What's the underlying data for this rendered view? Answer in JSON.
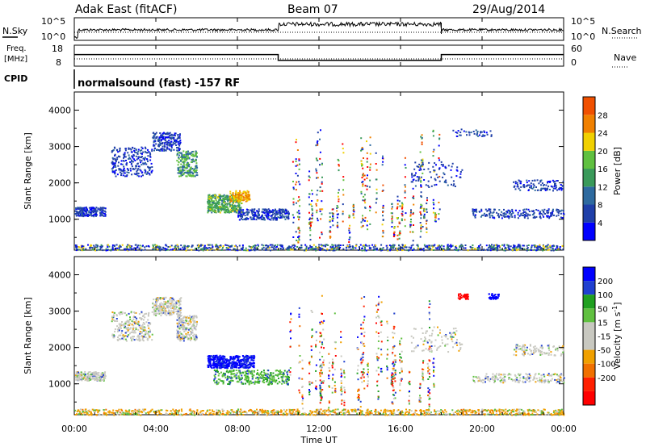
{
  "header": {
    "radar_title": "Adak East (fitACF)",
    "beam": "Beam 07",
    "date": "29/Aug/2014"
  },
  "top_panel": {
    "nsky_label": "N.Sky",
    "nsearch_label": "N.Search",
    "freq_label_line1": "Freq.",
    "freq_label_line2": "[MHz]",
    "nave_label": "Nave",
    "cpid_label": "CPID",
    "left_ticks_nsky": [
      "10^5",
      "10^0"
    ],
    "right_ticks_nsearch": [
      "10^5",
      "10^0"
    ],
    "left_ticks_freq": [
      "18",
      "8"
    ],
    "right_ticks_nave": [
      "60",
      "0"
    ],
    "cpid_text": "normalsound (fast) -157 RF"
  },
  "colors": {
    "power_scale": [
      "#0000ff",
      "#1f3fa8",
      "#2e6a9f",
      "#3a9a5a",
      "#60c040",
      "#f0d000",
      "#f08000",
      "#f05000",
      "#ff0000"
    ],
    "velocity_scale": [
      "#0000ff",
      "#2040d0",
      "#20a020",
      "#60c040",
      "#c8c8c0",
      "#c8c8c0",
      "#f0a000",
      "#f07000",
      "#ff2000",
      "#ff0000"
    ]
  },
  "chart_data": [
    {
      "type": "line",
      "panel": "noise-and-frequency",
      "x_range_hours": [
        0,
        24
      ],
      "series": [
        {
          "name": "N.Sky",
          "description": "sky noise level (log scale 10^0 to 10^5)"
        },
        {
          "name": "N.Search",
          "description": "search noise (dotted)"
        },
        {
          "name": "Freq.",
          "values_by_time": [
            [
              0,
              14
            ],
            [
              10,
              14
            ],
            [
              10,
              11
            ],
            [
              18,
              11
            ],
            [
              18,
              14
            ],
            [
              24,
              14
            ]
          ]
        },
        {
          "name": "Nave",
          "values_by_time": [
            [
              0,
              18
            ],
            [
              24,
              18
            ]
          ]
        }
      ]
    },
    {
      "type": "heatmap",
      "panel": "power",
      "ylabel": "Slant Range [km]",
      "yticks": [
        "1000",
        "2000",
        "3000",
        "4000"
      ],
      "ylim": [
        150,
        4500
      ],
      "colorbar_label": "Power [dB]",
      "colorbar_ticks": [
        "4",
        "8",
        "12",
        "16",
        "20",
        "24",
        "28"
      ],
      "colorbar_range": [
        0,
        32
      ]
    },
    {
      "type": "heatmap",
      "panel": "velocity",
      "ylabel": "Slant Range [km]",
      "yticks": [
        "1000",
        "2000",
        "3000",
        "4000"
      ],
      "ylim": [
        150,
        4500
      ],
      "colorbar_label": "Velocity [m s-1]",
      "colorbar_label_parts": [
        "Velocity [m s",
        "-1",
        "]"
      ],
      "colorbar_ticks": [
        "200",
        "100",
        "50",
        "15",
        "-15",
        "-50",
        "-100",
        "-200"
      ]
    }
  ],
  "x_axis": {
    "label": "Time UT",
    "ticks": [
      "00:00",
      "04:00",
      "08:00",
      "12:00",
      "16:00",
      "20:00",
      "00:00"
    ]
  }
}
